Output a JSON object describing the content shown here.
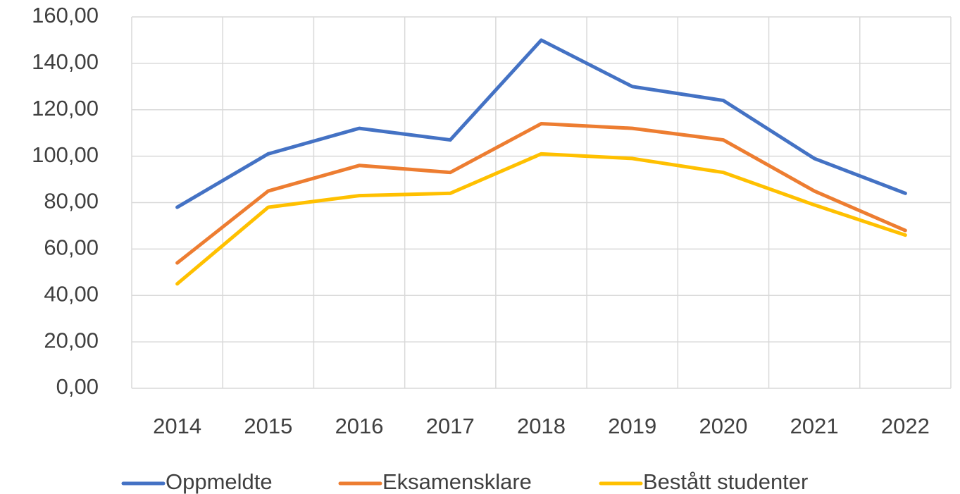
{
  "chart_data": {
    "type": "line",
    "categories": [
      "2014",
      "2015",
      "2016",
      "2017",
      "2018",
      "2019",
      "2020",
      "2021",
      "2022"
    ],
    "series": [
      {
        "name": "Oppmeldte",
        "color": "#4472c4",
        "values": [
          78,
          101,
          112,
          107,
          150,
          130,
          124,
          99,
          84
        ]
      },
      {
        "name": "Eksamensklare",
        "color": "#ed7d31",
        "values": [
          54,
          85,
          96,
          93,
          114,
          112,
          107,
          85,
          68
        ]
      },
      {
        "name": "Bestått studenter",
        "color": "#ffc000",
        "values": [
          45,
          78,
          83,
          84,
          101,
          99,
          93,
          79,
          66
        ]
      }
    ],
    "ylim": [
      0,
      160
    ],
    "yticks": [
      {
        "value": 0,
        "label": "0,00"
      },
      {
        "value": 20,
        "label": "20,00"
      },
      {
        "value": 40,
        "label": "40,00"
      },
      {
        "value": 60,
        "label": "60,00"
      },
      {
        "value": 80,
        "label": "80,00"
      },
      {
        "value": 100,
        "label": "100,00"
      },
      {
        "value": 120,
        "label": "120,00"
      },
      {
        "value": 140,
        "label": "140,00"
      },
      {
        "value": 160,
        "label": "160,00"
      }
    ],
    "grid": true,
    "legend": "bottom"
  }
}
